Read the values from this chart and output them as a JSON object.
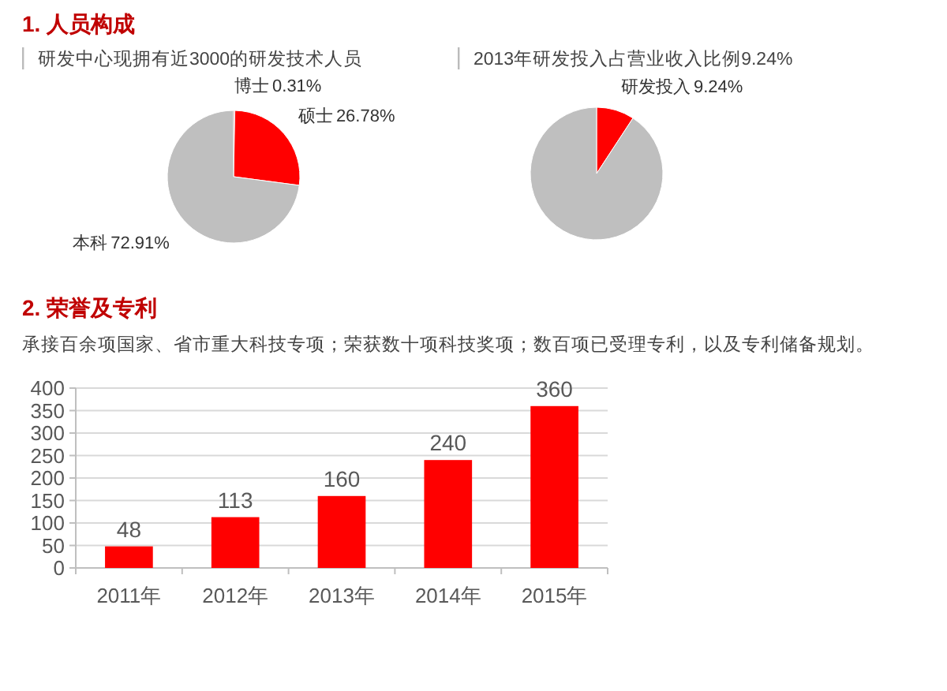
{
  "chart_data": [
    {
      "type": "pie",
      "title": "1. 人员构成",
      "subtitle": "研发中心现拥有近3000的研发技术人员",
      "categories": [
        "博士",
        "硕士",
        "本科"
      ],
      "values": [
        0.31,
        26.78,
        72.91
      ],
      "colors": [
        "#c00000",
        "#ff0000",
        "#bfbfbf"
      ],
      "value_labels": [
        "0.31%",
        "26.78%",
        "72.91%"
      ]
    },
    {
      "type": "pie",
      "subtitle": "2013年研发投入占营业收入比例9.24%",
      "categories": [
        "研发投入",
        null
      ],
      "values": [
        9.24,
        90.76
      ],
      "colors": [
        "#ff0000",
        "#bfbfbf"
      ],
      "value_labels": [
        "9.24%",
        null
      ]
    },
    {
      "type": "bar",
      "title": "2. 荣誉及专利",
      "subtitle": "承接百余项国家、省市重大科技专项；荣获数十项科技奖项；数百项已受理专利，以及专利储备规划。",
      "categories": [
        "2011年",
        "2012年",
        "2013年",
        "2014年",
        "2015年"
      ],
      "values": [
        48,
        113,
        160,
        240,
        360
      ],
      "color": "#ff0000",
      "ylim": [
        0,
        400
      ],
      "yticks": [
        0,
        50,
        100,
        150,
        200,
        250,
        300,
        350,
        400
      ],
      "grid": "y",
      "data_labels": true
    }
  ]
}
